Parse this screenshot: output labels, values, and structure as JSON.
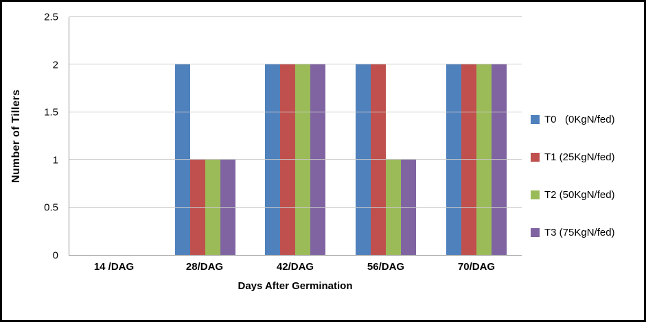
{
  "chart_data": {
    "type": "bar",
    "title": "",
    "categories": [
      "14 /DAG",
      "28/DAG",
      "42/DAG",
      "56/DAG",
      "70/DAG"
    ],
    "series": [
      {
        "name": "T0   (0KgN/fed)",
        "color": "#4F81BD",
        "values": [
          0,
          2,
          2,
          2,
          2
        ]
      },
      {
        "name": "T1 (25KgN/fed)",
        "color": "#C0504D",
        "values": [
          0,
          1,
          2,
          2,
          2
        ]
      },
      {
        "name": "T2 (50KgN/fed)",
        "color": "#9BBB59",
        "values": [
          0,
          1,
          2,
          1,
          2
        ]
      },
      {
        "name": "T3 (75KgN/fed)",
        "color": "#8064A2",
        "values": [
          0,
          1,
          2,
          1,
          2
        ]
      }
    ],
    "xlabel": "Days After Germination",
    "ylabel": "Number of Tillers",
    "ylim": [
      0,
      2.5
    ],
    "yticks": [
      "0",
      "0.5",
      "1",
      "1.5",
      "2",
      "2.5"
    ],
    "grid": true,
    "legend_position": "right",
    "axis_color": "#8c8c8c",
    "gridline_color": "#c9c9c9",
    "frame_color": "#000000"
  }
}
